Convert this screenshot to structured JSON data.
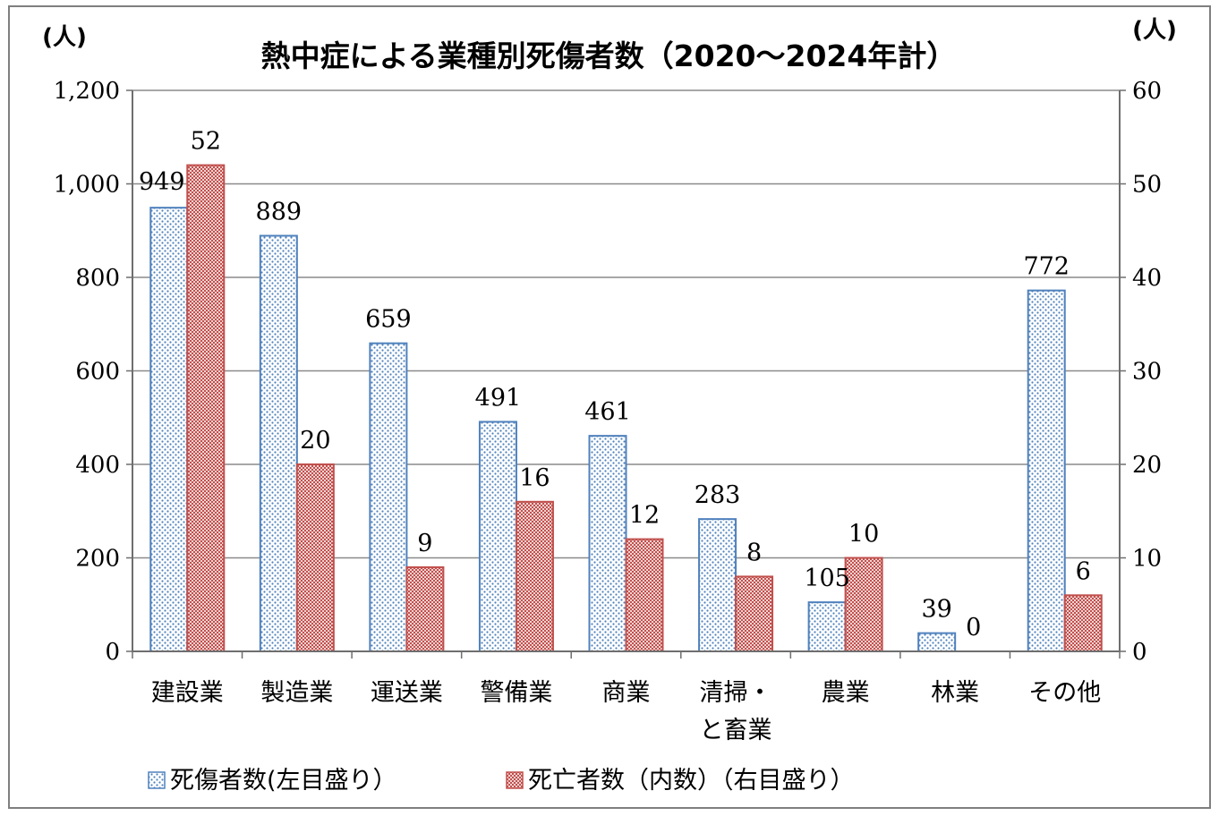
{
  "chart_data": {
    "type": "bar",
    "title": "熱中症による業種別死傷者数（2020～2024年計）",
    "y_unit_left": "(人)",
    "y_unit_right": "(人)",
    "categories": [
      [
        "建設業"
      ],
      [
        "製造業"
      ],
      [
        "運送業"
      ],
      [
        "警備業"
      ],
      [
        "商業"
      ],
      [
        "清掃・",
        "と畜業"
      ],
      [
        "農業"
      ],
      [
        "林業"
      ],
      [
        "その他"
      ]
    ],
    "series": [
      {
        "name": "死傷者数(左目盛り）",
        "axis": "left",
        "color": "#4f81bd",
        "pattern": "dotted",
        "values": [
          949,
          889,
          659,
          491,
          461,
          283,
          105,
          39,
          772
        ]
      },
      {
        "name": "死亡者数（内数）（右目盛り）",
        "axis": "right",
        "color": "#c0504d",
        "pattern": "crosshatch",
        "values": [
          52,
          20,
          9,
          16,
          12,
          8,
          10,
          0,
          6
        ]
      }
    ],
    "ylim_left": [
      0,
      1200
    ],
    "yticks_left": [
      "0",
      "200",
      "400",
      "600",
      "800",
      "1,000",
      "1,200"
    ],
    "ylim_right": [
      0,
      60
    ],
    "yticks_right": [
      "0",
      "10",
      "20",
      "30",
      "40",
      "50",
      "60"
    ],
    "grid": true,
    "legend_position": "bottom-left"
  }
}
